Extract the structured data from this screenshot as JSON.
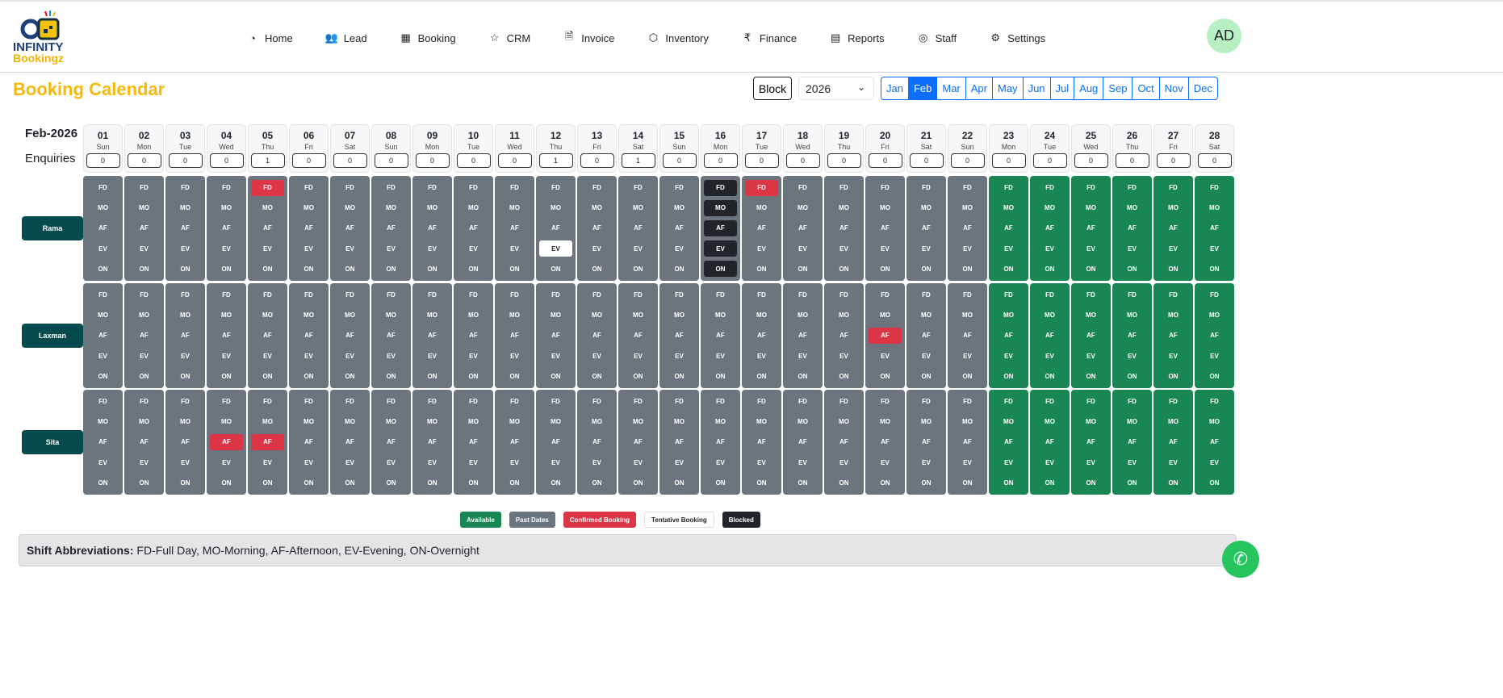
{
  "brand": {
    "line1": "INFINITY",
    "line2": "Bookingz"
  },
  "nav": [
    {
      "label": "Home",
      "icon": "pie-chart-icon",
      "glyph": "◔"
    },
    {
      "label": "Lead",
      "icon": "users-icon",
      "glyph": "👥"
    },
    {
      "label": "Booking",
      "icon": "calendar-icon",
      "glyph": "▦"
    },
    {
      "label": "CRM",
      "icon": "star-icon",
      "glyph": "☆"
    },
    {
      "label": "Invoice",
      "icon": "document-icon",
      "glyph": "🗎"
    },
    {
      "label": "Inventory",
      "icon": "box-icon",
      "glyph": "⬡"
    },
    {
      "label": "Finance",
      "icon": "rupee-icon",
      "glyph": "₹"
    },
    {
      "label": "Reports",
      "icon": "report-icon",
      "glyph": "▤"
    },
    {
      "label": "Staff",
      "icon": "user-circle-icon",
      "glyph": "◎"
    },
    {
      "label": "Settings",
      "icon": "gear-icon",
      "glyph": "⚙"
    }
  ],
  "avatar": "AD",
  "page_title": "Booking Calendar",
  "block_label": "Block",
  "year": "2026",
  "months": [
    "Jan",
    "Feb",
    "Mar",
    "Apr",
    "May",
    "Jun",
    "Jul",
    "Aug",
    "Sep",
    "Oct",
    "Nov",
    "Dec"
  ],
  "active_month": "Feb",
  "month_label": "Feb-2026",
  "enquiries_label": "Enquiries",
  "colors": {
    "available": "#198754",
    "past": "#6c757d",
    "confirmed": "#dc3545",
    "tentative": "#ffffff",
    "blocked": "#212529",
    "accent": "#0d6efd",
    "title": "#f8b90c"
  },
  "slots": [
    "FD",
    "MO",
    "AF",
    "EV",
    "ON"
  ],
  "days": [
    {
      "d": "01",
      "w": "Sun",
      "e": "0",
      "s": "past"
    },
    {
      "d": "02",
      "w": "Mon",
      "e": "0",
      "s": "past"
    },
    {
      "d": "03",
      "w": "Tue",
      "e": "0",
      "s": "past"
    },
    {
      "d": "04",
      "w": "Wed",
      "e": "0",
      "s": "past"
    },
    {
      "d": "05",
      "w": "Thu",
      "e": "1",
      "s": "past"
    },
    {
      "d": "06",
      "w": "Fri",
      "e": "0",
      "s": "past"
    },
    {
      "d": "07",
      "w": "Sat",
      "e": "0",
      "s": "past"
    },
    {
      "d": "08",
      "w": "Sun",
      "e": "0",
      "s": "past"
    },
    {
      "d": "09",
      "w": "Mon",
      "e": "0",
      "s": "past"
    },
    {
      "d": "10",
      "w": "Tue",
      "e": "0",
      "s": "past"
    },
    {
      "d": "11",
      "w": "Wed",
      "e": "0",
      "s": "past"
    },
    {
      "d": "12",
      "w": "Thu",
      "e": "1",
      "s": "past"
    },
    {
      "d": "13",
      "w": "Fri",
      "e": "0",
      "s": "past"
    },
    {
      "d": "14",
      "w": "Sat",
      "e": "1",
      "s": "past"
    },
    {
      "d": "15",
      "w": "Sun",
      "e": "0",
      "s": "past"
    },
    {
      "d": "16",
      "w": "Mon",
      "e": "0",
      "s": "past"
    },
    {
      "d": "17",
      "w": "Tue",
      "e": "0",
      "s": "past"
    },
    {
      "d": "18",
      "w": "Wed",
      "e": "0",
      "s": "past"
    },
    {
      "d": "19",
      "w": "Thu",
      "e": "0",
      "s": "past"
    },
    {
      "d": "20",
      "w": "Fri",
      "e": "0",
      "s": "past"
    },
    {
      "d": "21",
      "w": "Sat",
      "e": "0",
      "s": "past"
    },
    {
      "d": "22",
      "w": "Sun",
      "e": "0",
      "s": "past"
    },
    {
      "d": "23",
      "w": "Mon",
      "e": "0",
      "s": "available"
    },
    {
      "d": "24",
      "w": "Tue",
      "e": "0",
      "s": "available"
    },
    {
      "d": "25",
      "w": "Wed",
      "e": "0",
      "s": "available"
    },
    {
      "d": "26",
      "w": "Thu",
      "e": "0",
      "s": "available"
    },
    {
      "d": "27",
      "w": "Fri",
      "e": "0",
      "s": "available"
    },
    {
      "d": "28",
      "w": "Sat",
      "e": "0",
      "s": "available"
    }
  ],
  "resources": [
    {
      "name": "Rama",
      "marks": {
        "05": {
          "FD": "confirmed"
        },
        "12": {
          "EV": "tentative"
        },
        "16": {
          "FD": "blocked",
          "MO": "blocked",
          "AF": "blocked",
          "EV": "blocked",
          "ON": "blocked"
        },
        "17": {
          "FD": "confirmed"
        }
      }
    },
    {
      "name": "Laxman",
      "marks": {
        "20": {
          "AF": "confirmed"
        }
      }
    },
    {
      "name": "Sita",
      "marks": {
        "04": {
          "AF": "confirmed"
        },
        "05": {
          "AF": "confirmed"
        }
      }
    }
  ],
  "legend": [
    {
      "label": "Available",
      "key": "available"
    },
    {
      "label": "Past Dates",
      "key": "past"
    },
    {
      "label": "Confirmed Booking",
      "key": "confirmed"
    },
    {
      "label": "Tentative Booking",
      "key": "tentative"
    },
    {
      "label": "Blocked",
      "key": "blocked"
    }
  ],
  "shift_title": "Shift Abbreviations:",
  "shift_text": " FD-Full Day, MO-Morning, AF-Afternoon, EV-Evening, ON-Overnight"
}
